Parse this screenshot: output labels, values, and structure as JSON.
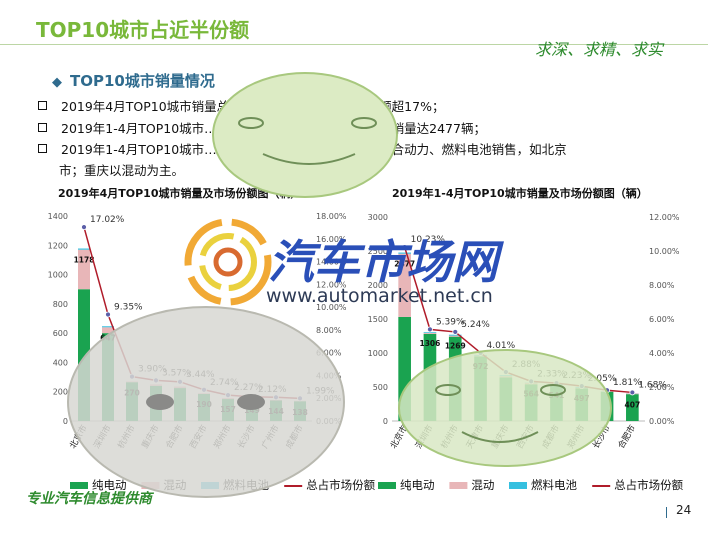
{
  "page_title": "TOP10城市占近半份额",
  "motto": "求深、求精、求实",
  "section_heading": "TOP10城市销量情况",
  "bullets": [
    "2019年4月TOP10城市销量总占比…………………………额超17%；",
    "2019年1-4月TOP10城市……………………………………，销量达2477辆；",
    "2019年1-4月TOP10城市…………………………………插混合动力、燃料电池销售，如北京",
    "市；重庆以混动为主。"
  ],
  "watermark": {
    "brand": "汽车市场网",
    "url": "www.automarket.net.cn"
  },
  "footer_slogan": "专业汽车信息提供商",
  "page_number": "24",
  "colors": {
    "pure_electric": "#1aa350",
    "hybrid": "#e8b6b8",
    "fuel_cell": "#35c0e0",
    "share_line": "#b01c2a",
    "title_green": "#79b83a",
    "heading_blue": "#2f6b8e",
    "face_fill": "#dcebc4",
    "face_stroke": "#a8c87e"
  },
  "chart_data": [
    {
      "type": "bar",
      "stacked": true,
      "title": "2019年4月TOP10城市销量及市场份额图（辆）",
      "categories": [
        "北京市",
        "深圳市",
        "杭州市",
        "重庆市",
        "合肥市",
        "西安市",
        "郑州市",
        "长沙市",
        "广州市",
        "成都市"
      ],
      "series": [
        {
          "name": "纯电动",
          "values": [
            900,
            600,
            265,
            240,
            225,
            185,
            150,
            145,
            140,
            135
          ]
        },
        {
          "name": "混动",
          "values": [
            270,
            40,
            5,
            10,
            10,
            5,
            7,
            4,
            4,
            3
          ]
        },
        {
          "name": "燃料电池",
          "values": [
            8,
            7,
            0,
            0,
            0,
            0,
            0,
            0,
            0,
            0
          ]
        }
      ],
      "totals": [
        1178,
        647,
        270,
        250,
        235,
        190,
        157,
        149,
        144,
        138
      ],
      "visible_total_labels": [
        "1178",
        "647",
        "270",
        "",
        "",
        "190",
        "157",
        "149",
        "144",
        "138"
      ],
      "share": {
        "name": "总占市场份额",
        "values": [
          17.02,
          9.35,
          3.9,
          3.57,
          3.44,
          2.74,
          2.27,
          2.12,
          2.08,
          1.99
        ],
        "labels": [
          "17.02%",
          "9.35%",
          "3.90%",
          "3.57%",
          "3.44%",
          "2.74%",
          "2.27%",
          "2.12%",
          "",
          "1.99%"
        ]
      },
      "ylim": [
        0,
        1400
      ],
      "y_ticks": [
        "0",
        "200",
        "400",
        "600",
        "800",
        "1000",
        "1200",
        "1400"
      ],
      "y2lim": [
        0,
        18
      ],
      "y2_ticks": [
        "0.00%",
        "2.00%",
        "4.00%",
        "6.00%",
        "8.00%",
        "10.00%",
        "12.00%",
        "14.00%",
        "16.00%",
        "18.00%"
      ],
      "legend": [
        "纯电动",
        "混动",
        "燃料电池",
        "总占市场份额"
      ],
      "legend_position": "bottom"
    },
    {
      "type": "bar",
      "stacked": true,
      "title": "2019年1-4月TOP10城市销量及市场份额图（辆）",
      "categories": [
        "北京市",
        "深圳市",
        "杭州市",
        "天津市",
        "重庆市",
        "西安市",
        "成都市",
        "郑州市",
        "长沙市",
        "合肥市"
      ],
      "series": [
        {
          "name": "纯电动",
          "values": [
            1530,
            1280,
            1240,
            950,
            640,
            540,
            515,
            480,
            430,
            395
          ]
        },
        {
          "name": "混动",
          "values": [
            930,
            15,
            15,
            10,
            20,
            20,
            10,
            5,
            5,
            10
          ]
        },
        {
          "name": "燃料电池",
          "values": [
            17,
            11,
            14,
            12,
            13,
            4,
            16,
            12,
            4,
            2
          ]
        }
      ],
      "totals": [
        2477,
        1306,
        1269,
        972,
        673,
        564,
        541,
        497,
        439,
        407
      ],
      "visible_total_labels": [
        "2477",
        "1306",
        "1269",
        "972",
        "",
        "564",
        "541",
        "497",
        "",
        "407"
      ],
      "share": {
        "name": "总占市场份额",
        "values": [
          10.23,
          5.39,
          5.24,
          4.01,
          2.88,
          2.33,
          2.23,
          2.05,
          1.81,
          1.68
        ],
        "labels": [
          "10.23%",
          "5.39%",
          "5.24%",
          "4.01%",
          "2.88%",
          "2.33%",
          "2.23%",
          "2.05%",
          "1.81%",
          "1.68%"
        ]
      },
      "ylim": [
        0,
        3000
      ],
      "y_ticks": [
        "0",
        "500",
        "1000",
        "1500",
        "2000",
        "2500",
        "3000"
      ],
      "y2lim": [
        0,
        12
      ],
      "y2_ticks": [
        "0.00%",
        "2.00%",
        "4.00%",
        "6.00%",
        "8.00%",
        "10.00%",
        "12.00%"
      ],
      "legend": [
        "纯电动",
        "混动",
        "燃料电池",
        "总占市场份额"
      ],
      "legend_position": "bottom"
    }
  ]
}
